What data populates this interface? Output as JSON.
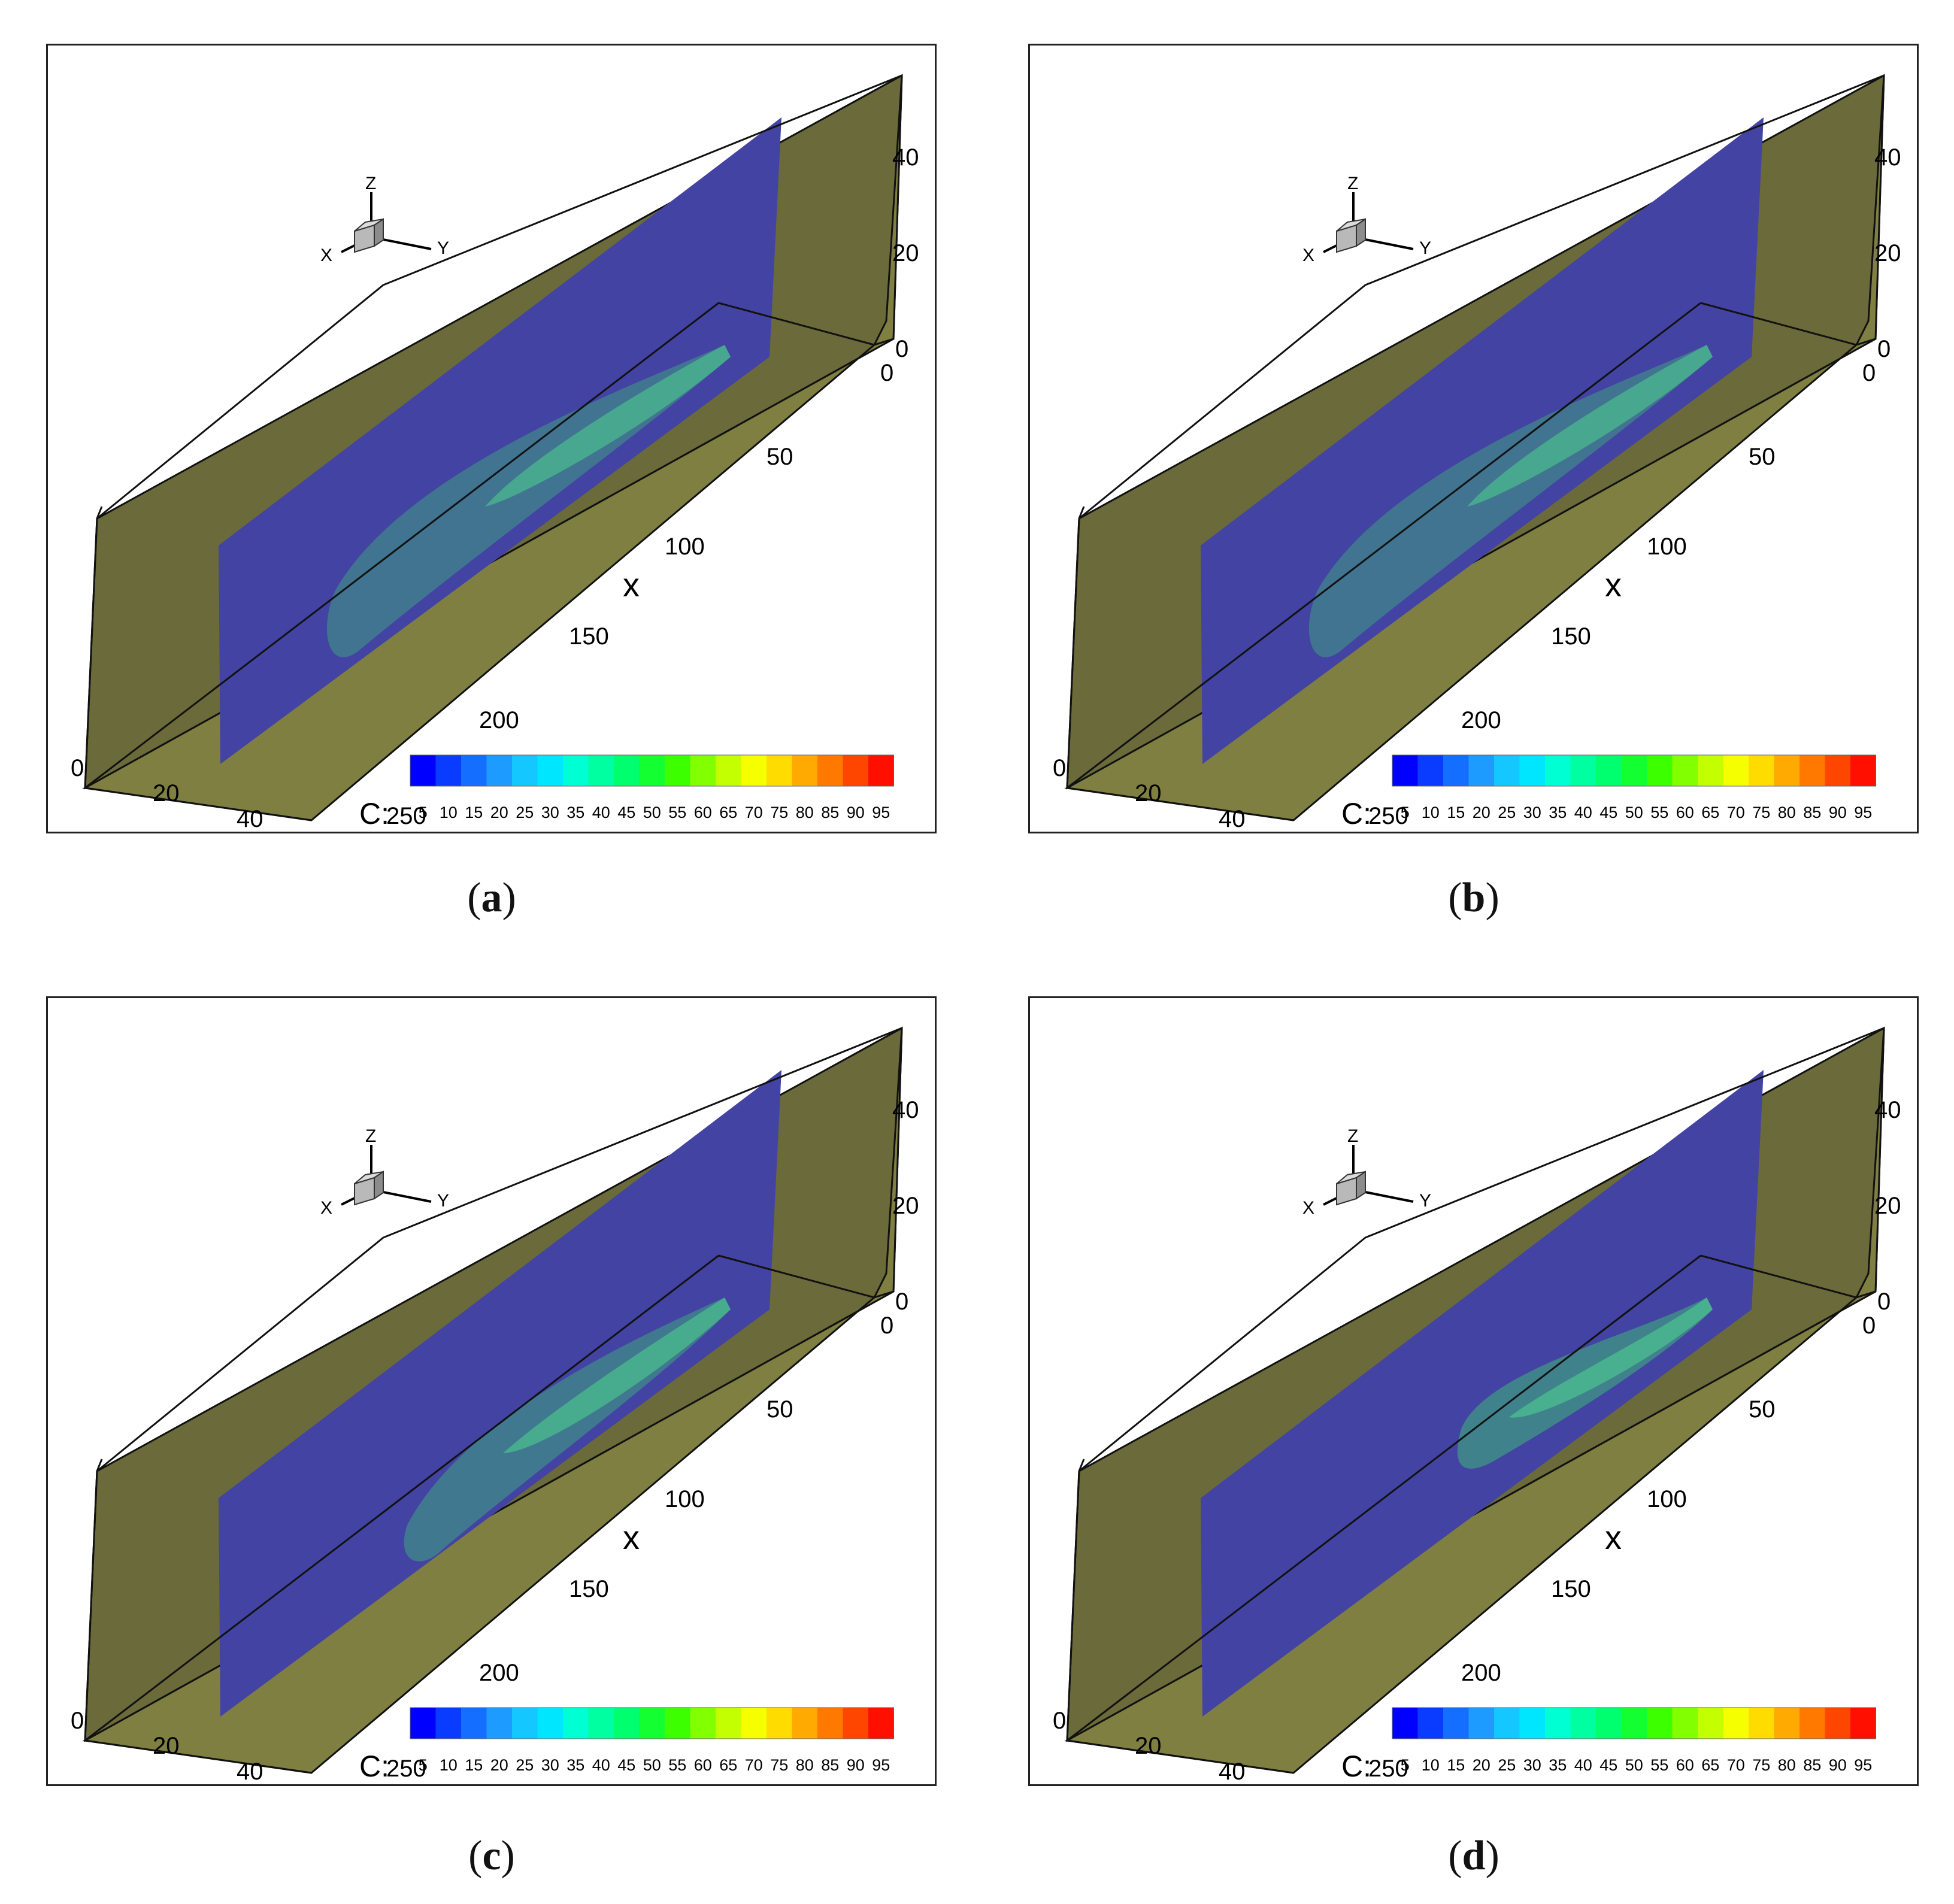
{
  "panels": [
    {
      "id": "a",
      "caption": "a",
      "plume": "long",
      "x_axis_label": "x"
    },
    {
      "id": "b",
      "caption": "b",
      "plume": "long",
      "x_axis_label": "x"
    },
    {
      "id": "c",
      "caption": "c",
      "plume": "medium",
      "x_axis_label": "x"
    },
    {
      "id": "d",
      "caption": "d",
      "plume": "short",
      "x_axis_label": "x"
    }
  ],
  "axes": {
    "x_ticks": [
      "0",
      "50",
      "100",
      "150",
      "200",
      "250"
    ],
    "y_ticks": [
      "0",
      "20",
      "40"
    ],
    "z_ticks": [
      "0",
      "20",
      "40"
    ],
    "triad": {
      "x": "X",
      "y": "Y",
      "z": "Z"
    }
  },
  "legend": {
    "label": "C:",
    "values": [
      "5",
      "10",
      "15",
      "20",
      "25",
      "30",
      "35",
      "40",
      "45",
      "50",
      "55",
      "60",
      "65",
      "70",
      "75",
      "80",
      "85",
      "90",
      "95"
    ],
    "colors": [
      "#0000ff",
      "#0a3cff",
      "#146eff",
      "#1e9bff",
      "#14c8ff",
      "#00e6ff",
      "#00ffd2",
      "#00ffa0",
      "#00ff6e",
      "#14ff32",
      "#3cff00",
      "#82ff00",
      "#c3ff00",
      "#f5ff00",
      "#ffdc00",
      "#ffaa00",
      "#ff7800",
      "#ff4600",
      "#ff0f00"
    ]
  },
  "colors": {
    "wall": "#7f7f42",
    "wall_dark": "#6a6a3a",
    "slice": "#4343a3",
    "plume": "#3f9c82",
    "plume_core": "#49b58e"
  }
}
